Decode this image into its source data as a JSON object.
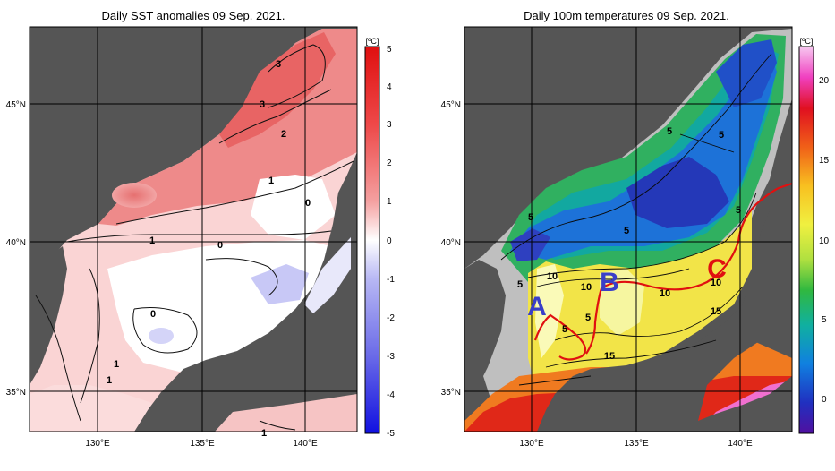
{
  "left_panel": {
    "title": "Daily SST anomalies 09 Sep. 2021.",
    "unit": "[ºC]",
    "lat_labels": [
      "45°N",
      "40°N",
      "35°N"
    ],
    "lon_labels": [
      "130°E",
      "135°E",
      "140°E"
    ],
    "colorbar_ticks": [
      "5",
      "4",
      "3",
      "2",
      "1",
      "0",
      "-1",
      "-2",
      "-3",
      "-4",
      "-5"
    ],
    "contour_labels": [
      "3",
      "3",
      "2",
      "1",
      "0",
      "1",
      "0",
      "0",
      "1",
      "1",
      "1"
    ]
  },
  "right_panel": {
    "title": "Daily 100m temperatures 09 Sep. 2021.",
    "unit": "[ºC]",
    "lat_labels": [
      "45°N",
      "40°N",
      "35°N"
    ],
    "lon_labels": [
      "130°E",
      "135°E",
      "140°E"
    ],
    "colorbar_ticks": [
      "20",
      "15",
      "10",
      "5",
      "0"
    ],
    "contour_labels": [
      "5",
      "5",
      "5",
      "5",
      "5",
      "5",
      "10",
      "10",
      "10",
      "10",
      "5",
      "5",
      "15",
      "15"
    ],
    "markers": [
      "A",
      "B",
      "C"
    ],
    "marker_color": "#3a3fc8",
    "front_line_color": "#e01010"
  },
  "colors": {
    "land": "#555555",
    "anomaly_positive": "#e85050",
    "anomaly_negative": "#6e6ee6",
    "cold_water": "#2040c0",
    "warm_water": "#f08020"
  }
}
